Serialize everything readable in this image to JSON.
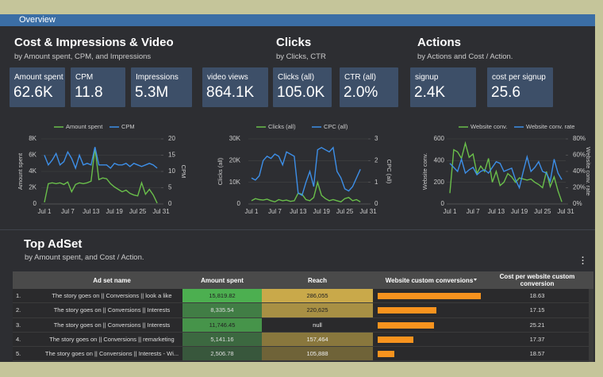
{
  "header": {
    "title": "Overview"
  },
  "sections": [
    {
      "title": "Cost & Impressions & Video",
      "subtitle": "by Amount spent, CPM, and Impressions"
    },
    {
      "title": "Clicks",
      "subtitle": "by Clicks, CTR"
    },
    {
      "title": "Actions",
      "subtitle": "by Actions and Cost / Action."
    }
  ],
  "kpis": [
    {
      "label": "Amount spent",
      "value": "62.6K"
    },
    {
      "label": "CPM",
      "value": "11.8"
    },
    {
      "label": "Impressions",
      "value": "5.3M"
    },
    {
      "label": "video views",
      "value": "864.1K"
    },
    {
      "label": "Clicks (all)",
      "value": "105.0K"
    },
    {
      "label": "CTR (all)",
      "value": "2.0%"
    },
    {
      "label": "signup",
      "value": "2.4K"
    },
    {
      "label": "cost per signup",
      "value": "25.6"
    }
  ],
  "charts": [
    {
      "type": "line",
      "y_label": "Amount spent",
      "y2_label": "CPM",
      "categories": [
        "Jul 1",
        null,
        null,
        null,
        null,
        null,
        "Jul 7",
        null,
        null,
        null,
        null,
        null,
        "Jul 13",
        null,
        null,
        null,
        null,
        null,
        "Jul 19",
        null,
        null,
        null,
        null,
        null,
        "Jul 25",
        null,
        null,
        null,
        null,
        null,
        "Jul 31"
      ],
      "ylim": [
        0,
        8000
      ],
      "yticks": [
        0,
        {
          "value": 2000,
          "label": "2K"
        },
        {
          "value": 4000,
          "label": "4K"
        },
        {
          "value": 6000,
          "label": "6K"
        },
        {
          "value": 8000,
          "label": "8K"
        }
      ],
      "y2lim": [
        0,
        20
      ],
      "y2ticks": [
        0,
        5,
        10,
        15,
        20
      ],
      "grid": true,
      "series": [
        {
          "name": "Amount spent",
          "color": "#6abf4b",
          "values": [
            200,
            2500,
            2600,
            2500,
            2600,
            2400,
            2700,
            1500,
            2400,
            2600,
            2500,
            2600,
            2800,
            6900,
            3000,
            3200,
            3100,
            2500,
            2100,
            1800,
            1500,
            1700,
            1300,
            1100,
            1000,
            2600,
            1200,
            1800,
            1100,
            100,
            null
          ]
        },
        {
          "name": "CPM",
          "color": "#3d8fe8",
          "axis": "y2",
          "values": [
            15,
            12,
            13.5,
            15.5,
            12,
            13,
            16,
            14,
            11,
            15,
            12,
            12.5,
            12,
            17.5,
            12,
            12,
            12,
            11,
            12.5,
            12,
            12,
            12.5,
            11.5,
            12.5,
            12,
            11.5,
            12,
            12.5,
            12,
            11,
            null
          ]
        }
      ]
    },
    {
      "type": "line",
      "y_label": "Clicks (all)",
      "y2_label": "CPC (all)",
      "categories": [
        "Jul 1",
        null,
        null,
        null,
        null,
        null,
        "Jul 7",
        null,
        null,
        null,
        null,
        null,
        "Jul 13",
        null,
        null,
        null,
        null,
        null,
        "Jul 19",
        null,
        null,
        null,
        null,
        null,
        "Jul 25",
        null,
        null,
        null,
        null,
        null,
        "Jul 31"
      ],
      "ylim": [
        0,
        30000
      ],
      "yticks": [
        0,
        {
          "value": 10000,
          "label": "10K"
        },
        {
          "value": 20000,
          "label": "20K"
        },
        {
          "value": 30000,
          "label": "30K"
        }
      ],
      "y2lim": [
        0,
        3
      ],
      "y2ticks": [
        0,
        1,
        2,
        3
      ],
      "grid": true,
      "series": [
        {
          "name": "Clicks (all)",
          "color": "#6abf4b",
          "values": [
            1500,
            2500,
            2000,
            1800,
            2200,
            1500,
            1000,
            2000,
            1500,
            1800,
            1200,
            1500,
            5000,
            4500,
            2000,
            1500,
            3000,
            10000,
            4000,
            2500,
            1500,
            2000,
            1500,
            1000,
            2500,
            3000,
            1500,
            2000,
            1000,
            null,
            null
          ]
        },
        {
          "name": "CPC (all)",
          "color": "#3d8fe8",
          "axis": "y2",
          "values": [
            1.2,
            1.1,
            1.3,
            2.0,
            2.2,
            2.1,
            2.3,
            2.2,
            1.8,
            2.4,
            2.3,
            2.2,
            0.5,
            0.4,
            1.0,
            1.5,
            0.8,
            2.5,
            2.6,
            2.5,
            2.4,
            2.6,
            1.5,
            1.2,
            0.7,
            0.6,
            0.8,
            1.2,
            1.6,
            null,
            null
          ]
        }
      ]
    },
    {
      "type": "line",
      "y_label": "Website conv.",
      "y2_label": "Website conv. rate",
      "categories": [
        "Jul 1",
        null,
        null,
        null,
        null,
        null,
        "Jul 7",
        null,
        null,
        null,
        null,
        null,
        "Jul 13",
        null,
        null,
        null,
        null,
        null,
        "Jul 19",
        null,
        null,
        null,
        null,
        null,
        "Jul 25",
        null,
        null,
        null,
        null,
        null,
        "Jul 31"
      ],
      "ylim": [
        0,
        600
      ],
      "yticks": [
        0,
        200,
        400,
        600
      ],
      "y2lim": [
        0,
        80
      ],
      "y2ticks": [
        {
          "value": 0,
          "label": "0%"
        },
        {
          "value": 20,
          "label": "20%"
        },
        {
          "value": 40,
          "label": "40%"
        },
        {
          "value": 60,
          "label": "60%"
        },
        {
          "value": 80,
          "label": "80%"
        }
      ],
      "grid": true,
      "series": [
        {
          "name": "Website conv.",
          "color": "#6abf4b",
          "values": [
            100,
            500,
            480,
            420,
            560,
            430,
            460,
            280,
            350,
            300,
            420,
            200,
            300,
            170,
            200,
            280,
            250,
            200,
            240,
            230,
            220,
            230,
            200,
            180,
            150,
            300,
            160,
            250,
            120,
            20,
            null
          ]
        },
        {
          "name": "Website conv. rate",
          "color": "#3d8fe8",
          "axis": "y2",
          "values": [
            50,
            45,
            40,
            55,
            38,
            42,
            45,
            36,
            40,
            42,
            38,
            45,
            52,
            50,
            40,
            42,
            44,
            30,
            20,
            40,
            58,
            40,
            45,
            52,
            40,
            38,
            28,
            55,
            38,
            30,
            null
          ]
        }
      ]
    }
  ],
  "table": {
    "title": "Top AdSet",
    "subtitle": "by Amount spent, and Cost / Action.",
    "columns": [
      "Ad set name",
      "Amount spent",
      "Reach",
      "Website custom conversions",
      "Cost per website custom conversion"
    ],
    "rows": [
      {
        "index": "1.",
        "name": "The story goes on || Conversions || look a like",
        "amount": "15,819.82",
        "reach": "286,055",
        "conversions": 849,
        "cost": "18.63"
      },
      {
        "index": "2.",
        "name": "The story goes on || Conversions || Interests",
        "amount": "8,335.54",
        "reach": "220,625",
        "conversions": 486,
        "cost": "17.15"
      },
      {
        "index": "3.",
        "name": "The story goes on || Conversions || Interests",
        "amount": "11,746.45",
        "reach": "null",
        "conversions": 466,
        "cost": "25.21"
      },
      {
        "index": "4.",
        "name": "The story goes on || Conversions || remarketing",
        "amount": "5,141.16",
        "reach": "157,464",
        "conversions": 296,
        "cost": "17.37"
      },
      {
        "index": "5.",
        "name": "The story goes on || Conversions || Interests - Wi...",
        "amount": "2,506.78",
        "reach": "105,888",
        "conversions": 135,
        "cost": "18.57"
      }
    ]
  }
}
